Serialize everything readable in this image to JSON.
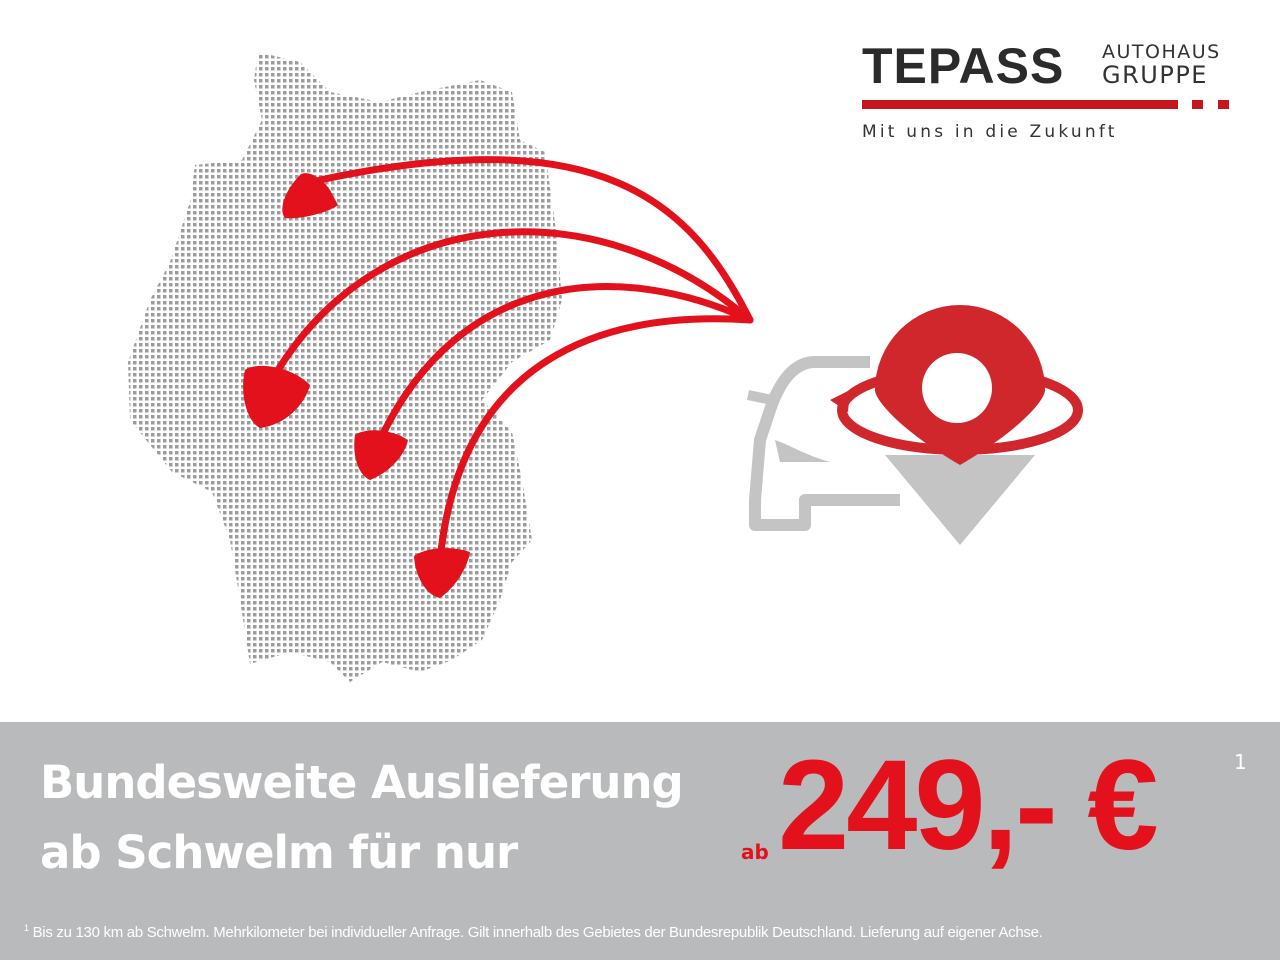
{
  "logo": {
    "brand": "TEPASS",
    "sub_line1": "AUTOHAUS",
    "sub_line2": "GRUPPE",
    "tagline": "Mit uns in die Zukunft"
  },
  "banner": {
    "headline_line1": "Bundesweite Auslieferung",
    "headline_line2": "ab Schwelm für nur",
    "price_prefix": "ab",
    "price": "249,- €",
    "footnote_marker": "1",
    "footnote": "Bis zu 130 km ab Schwelm. Mehrkilometer bei individueller Anfrage. Gilt innerhalb des Gebietes der Bundesrepublik Deutschland. Lieferung auf eigener Achse."
  },
  "colors": {
    "accent": "#e2111b",
    "banner": "#b9babb",
    "map_dots": "#8a8a8a",
    "icon_grey": "#c4c4c4"
  },
  "icons": [
    "germany-dot-map",
    "delivery-arrows",
    "car-icon",
    "location-pin-icon"
  ]
}
